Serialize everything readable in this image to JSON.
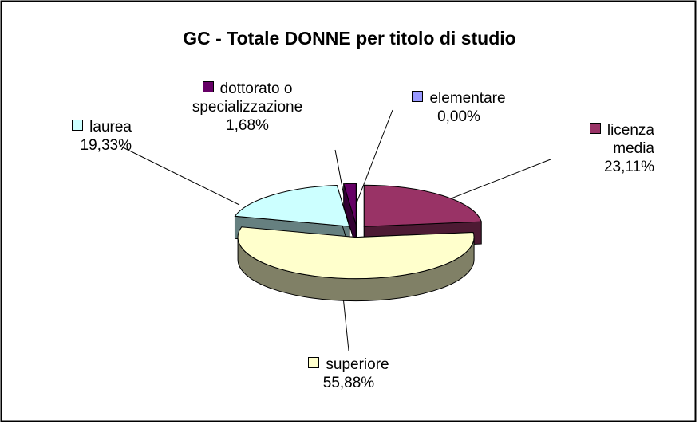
{
  "chart_data": {
    "type": "pie",
    "title": "GC - Totale DONNE per titolo di studio",
    "categories": [
      "elementare",
      "licenza media",
      "superiore",
      "laurea",
      "dottorato o specializzazione"
    ],
    "values": [
      0.0,
      23.11,
      55.88,
      19.33,
      1.68
    ],
    "value_labels": [
      "0,00%",
      "23,11%",
      "55,88%",
      "19,33%",
      "1,68%"
    ],
    "colors": [
      "#9999ff",
      "#993366",
      "#ffffcc",
      "#ccffff",
      "#660066"
    ],
    "side_colors": [
      "#4d4d80",
      "#4d1a33",
      "#808066",
      "#668080",
      "#330033"
    ]
  }
}
